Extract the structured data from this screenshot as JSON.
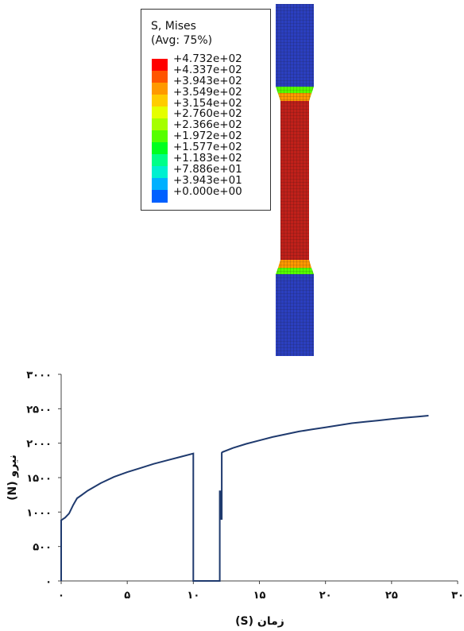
{
  "legend": {
    "title_line1": "S, Mises",
    "title_line2": "(Avg: 75%)",
    "values": [
      "+4.732e+02",
      "+4.337e+02",
      "+3.943e+02",
      "+3.549e+02",
      "+3.154e+02",
      "+2.760e+02",
      "+2.366e+02",
      "+1.972e+02",
      "+1.577e+02",
      "+1.183e+02",
      "+7.886e+01",
      "+3.943e+01",
      "+0.000e+00"
    ],
    "colors": [
      "#ff0000",
      "#ff5500",
      "#ff9900",
      "#ffcc00",
      "#e5ff00",
      "#a5ff00",
      "#55ff00",
      "#00ff20",
      "#00ff88",
      "#00f0d0",
      "#00b0ff",
      "#0060ff",
      "#0000ff"
    ]
  },
  "specimen_colors": {
    "grip": "#2b3fbf",
    "gauge": "#c0201a",
    "transition_hot": "#ff9900",
    "transition_mid": "#55ff00",
    "mesh": "#111111"
  },
  "chart_data": {
    "type": "line",
    "xlabel": "زمان (S)",
    "ylabel": "نیرو (N)",
    "xlim": [
      0,
      30
    ],
    "ylim": [
      0,
      3000
    ],
    "xticks": [
      0,
      5,
      10,
      15,
      20,
      25,
      30
    ],
    "xtick_labels": [
      "۰",
      "۵",
      "۱۰",
      "۱۵",
      "۲۰",
      "۲۵",
      "۳۰"
    ],
    "yticks": [
      0,
      500,
      1000,
      1500,
      2000,
      2500,
      3000
    ],
    "ytick_labels": [
      "۰",
      "۵۰۰",
      "۱۰۰۰",
      "۱۵۰۰",
      "۲۰۰۰",
      "۲۵۰۰",
      "۳۰۰۰"
    ],
    "line_color": "#1f3a6e",
    "series": [
      {
        "x": [
          0,
          0,
          0.3,
          0.6,
          0.9,
          1.2,
          1.5,
          2,
          3,
          4,
          5,
          6,
          7,
          8,
          9,
          10,
          10,
          12.0,
          12.0,
          12.1,
          12.1,
          12.15,
          12.15,
          12.2,
          13,
          14,
          15,
          16,
          17,
          18,
          19,
          20,
          21,
          22,
          23,
          24,
          25,
          26,
          27,
          27.8
        ],
        "y": [
          0,
          880,
          920,
          980,
          1100,
          1200,
          1240,
          1310,
          1420,
          1510,
          1580,
          1640,
          1700,
          1750,
          1800,
          1850,
          0,
          0,
          1300,
          1300,
          900,
          900,
          1860,
          1870,
          1930,
          1990,
          2040,
          2090,
          2130,
          2170,
          2200,
          2230,
          2260,
          2290,
          2310,
          2330,
          2350,
          2370,
          2385,
          2400
        ]
      }
    ]
  }
}
